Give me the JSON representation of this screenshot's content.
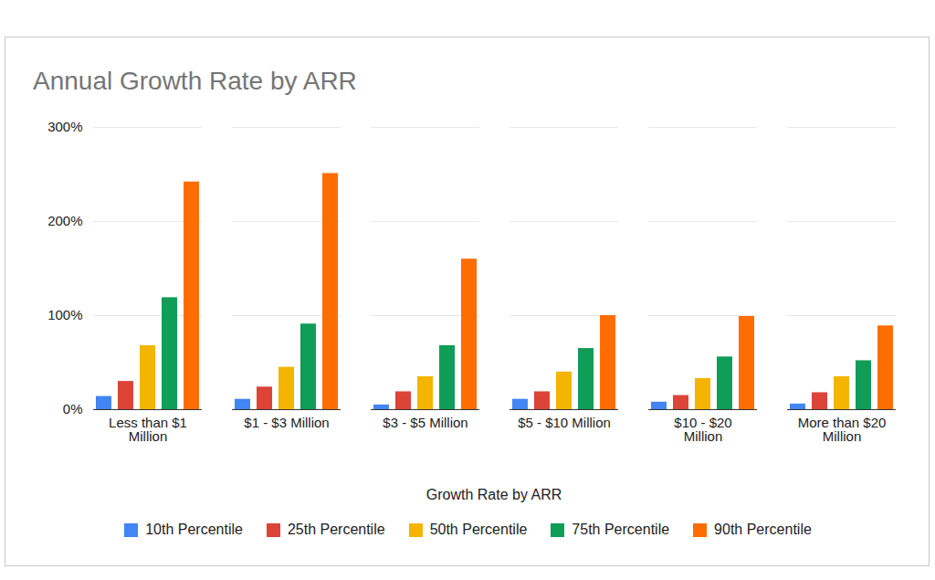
{
  "chart_data": {
    "type": "bar",
    "title": "Annual Growth Rate by ARR",
    "x_label": "Growth Rate by ARR",
    "categories": [
      "Less than $1 Million",
      "$1 - $3 Million",
      "$3 - $5 Million",
      "$5 - $10 Million",
      "$10 - $20 Million",
      "More than $20 Million"
    ],
    "series": [
      {
        "name": "10th Percentile",
        "color": "#4285f4",
        "values": [
          14,
          11,
          5,
          11,
          8,
          6
        ]
      },
      {
        "name": "25th Percentile",
        "color": "#db4437",
        "values": [
          30,
          24,
          19,
          19,
          15,
          18
        ]
      },
      {
        "name": "50th Percentile",
        "color": "#f4b400",
        "values": [
          68,
          45,
          35,
          40,
          33,
          35
        ]
      },
      {
        "name": "75th Percentile",
        "color": "#0f9d58",
        "values": [
          119,
          91,
          68,
          65,
          56,
          52
        ]
      },
      {
        "name": "90th Percentile",
        "color": "#ff6d01",
        "values": [
          242,
          251,
          160,
          100,
          99,
          89
        ]
      }
    ],
    "ylim": [
      0,
      300
    ],
    "yticks": [
      {
        "value": 0,
        "label": "0%"
      },
      {
        "value": 100,
        "label": "100%"
      },
      {
        "value": 200,
        "label": "200%"
      },
      {
        "value": 300,
        "label": "300%"
      }
    ],
    "grid": true,
    "legend": "bottom"
  }
}
